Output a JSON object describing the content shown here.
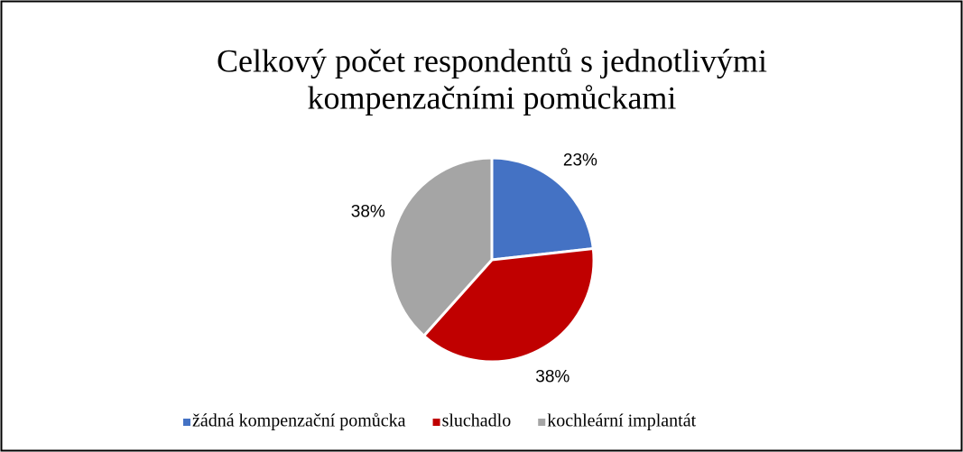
{
  "chart_data": {
    "type": "pie",
    "title": [
      "Celkový počet respondentů s jednotlivými",
      "kompenzačními pomůckami"
    ],
    "categories": [
      "žádná kompenzační pomůcka",
      "sluchadlo",
      "kochleární implantát"
    ],
    "values": [
      23,
      38,
      38
    ],
    "value_labels": [
      "23%",
      "38%",
      "38%"
    ],
    "colors": [
      "#4472c4",
      "#c00000",
      "#a5a5a5"
    ],
    "legend": "bottom"
  }
}
